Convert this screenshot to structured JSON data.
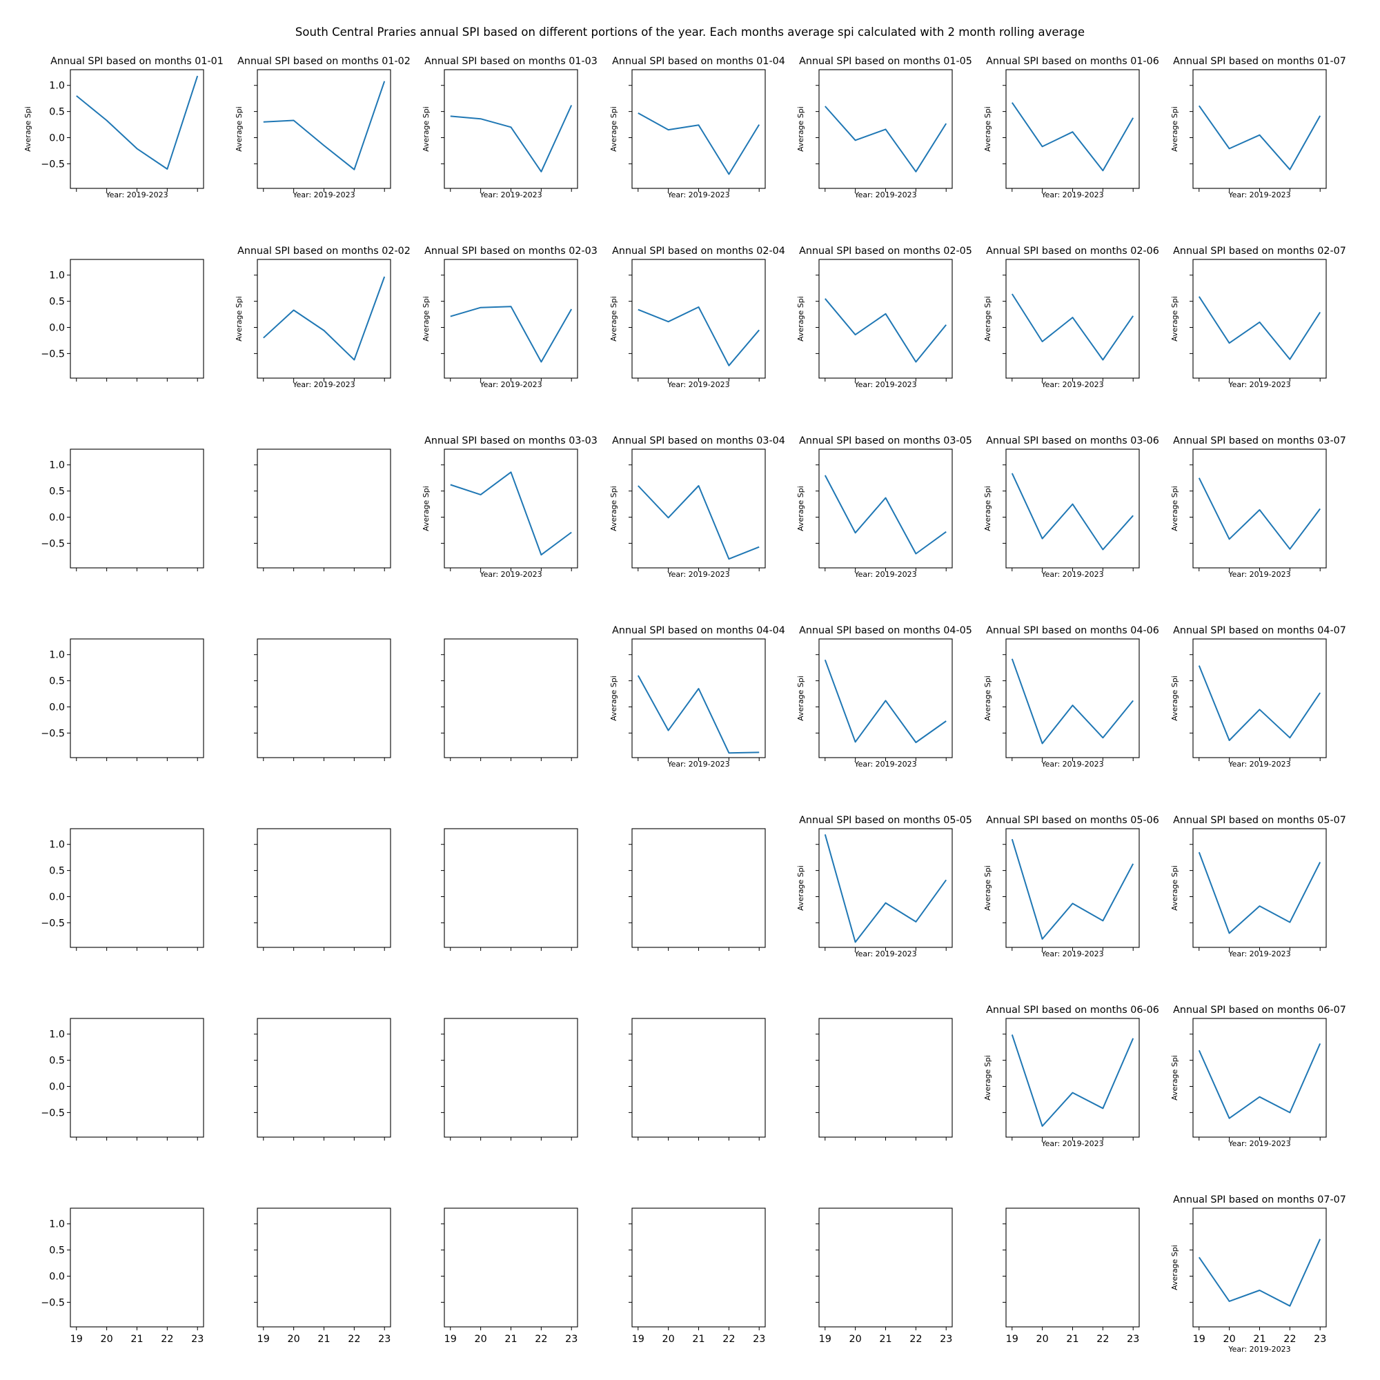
{
  "figure": {
    "title": "South Central Praries annual SPI based on different portions of the year. Each months average spi calculated with 2  month rolling average",
    "grid_rows": 7,
    "grid_cols": 7,
    "line_color": "#1f77b4"
  },
  "chart_data": {
    "type": "line",
    "x_tick_labels": [
      "19",
      "20",
      "21",
      "22",
      "23"
    ],
    "y_tick_labels": [
      "1.0",
      "0.5",
      "0.0",
      "−0.5"
    ],
    "y_ticks": [
      1.0,
      0.5,
      0.0,
      -0.5
    ],
    "xlim": [
      18.8,
      23.2
    ],
    "ylim": [
      -0.97,
      1.3
    ],
    "ylabel": "Average Spi",
    "xlabel": "Year: 2019-2023",
    "subplots": [
      {
        "row": 0,
        "col": 0,
        "title": "Annual SPI based on months 01-01",
        "x": [
          19,
          20,
          21,
          22,
          23
        ],
        "values": [
          0.8,
          0.33,
          -0.21,
          -0.6,
          1.18
        ]
      },
      {
        "row": 0,
        "col": 1,
        "title": "Annual SPI based on months 01-02",
        "x": [
          19,
          20,
          21,
          22,
          23
        ],
        "values": [
          0.3,
          0.33,
          -0.15,
          -0.61,
          1.08
        ]
      },
      {
        "row": 0,
        "col": 2,
        "title": "Annual SPI based on months 01-03",
        "x": [
          19,
          20,
          21,
          22,
          23
        ],
        "values": [
          0.41,
          0.36,
          0.2,
          -0.65,
          0.62
        ]
      },
      {
        "row": 0,
        "col": 3,
        "title": "Annual SPI based on months 01-04",
        "x": [
          19,
          20,
          21,
          22,
          23
        ],
        "values": [
          0.47,
          0.15,
          0.24,
          -0.7,
          0.25
        ]
      },
      {
        "row": 0,
        "col": 4,
        "title": "Annual SPI based on months 01-05",
        "x": [
          19,
          20,
          21,
          22,
          23
        ],
        "values": [
          0.6,
          -0.05,
          0.16,
          -0.65,
          0.27
        ]
      },
      {
        "row": 0,
        "col": 5,
        "title": "Annual SPI based on months 01-06",
        "x": [
          19,
          20,
          21,
          22,
          23
        ],
        "values": [
          0.67,
          -0.17,
          0.11,
          -0.63,
          0.38
        ]
      },
      {
        "row": 0,
        "col": 6,
        "title": "Annual SPI based on months 01-07",
        "x": [
          19,
          20,
          21,
          22,
          23
        ],
        "values": [
          0.61,
          -0.21,
          0.05,
          -0.61,
          0.42
        ]
      },
      {
        "row": 1,
        "col": 1,
        "title": "Annual SPI based on months 02-02",
        "x": [
          19,
          20,
          21,
          22,
          23
        ],
        "values": [
          -0.2,
          0.33,
          -0.06,
          -0.62,
          0.97
        ]
      },
      {
        "row": 1,
        "col": 2,
        "title": "Annual SPI based on months 02-03",
        "x": [
          19,
          20,
          21,
          22,
          23
        ],
        "values": [
          0.21,
          0.38,
          0.4,
          -0.66,
          0.35
        ]
      },
      {
        "row": 1,
        "col": 3,
        "title": "Annual SPI based on months 02-04",
        "x": [
          19,
          20,
          21,
          22,
          23
        ],
        "values": [
          0.34,
          0.11,
          0.39,
          -0.73,
          -0.05
        ]
      },
      {
        "row": 1,
        "col": 4,
        "title": "Annual SPI based on months 02-05",
        "x": [
          19,
          20,
          21,
          22,
          23
        ],
        "values": [
          0.55,
          -0.14,
          0.26,
          -0.66,
          0.05
        ]
      },
      {
        "row": 1,
        "col": 5,
        "title": "Annual SPI based on months 02-06",
        "x": [
          19,
          20,
          21,
          22,
          23
        ],
        "values": [
          0.64,
          -0.27,
          0.19,
          -0.62,
          0.22
        ]
      },
      {
        "row": 1,
        "col": 6,
        "title": "Annual SPI based on months 02-07",
        "x": [
          19,
          20,
          21,
          22,
          23
        ],
        "values": [
          0.59,
          -0.3,
          0.1,
          -0.61,
          0.29
        ]
      },
      {
        "row": 2,
        "col": 2,
        "title": "Annual SPI based on months 03-03",
        "x": [
          19,
          20,
          21,
          22,
          23
        ],
        "values": [
          0.62,
          0.43,
          0.86,
          -0.72,
          -0.29
        ]
      },
      {
        "row": 2,
        "col": 3,
        "title": "Annual SPI based on months 03-04",
        "x": [
          19,
          20,
          21,
          22,
          23
        ],
        "values": [
          0.6,
          -0.01,
          0.6,
          -0.8,
          -0.57
        ]
      },
      {
        "row": 2,
        "col": 4,
        "title": "Annual SPI based on months 03-05",
        "x": [
          19,
          20,
          21,
          22,
          23
        ],
        "values": [
          0.8,
          -0.3,
          0.37,
          -0.7,
          -0.28
        ]
      },
      {
        "row": 2,
        "col": 5,
        "title": "Annual SPI based on months 03-06",
        "x": [
          19,
          20,
          21,
          22,
          23
        ],
        "values": [
          0.84,
          -0.41,
          0.25,
          -0.62,
          0.03
        ]
      },
      {
        "row": 2,
        "col": 6,
        "title": "Annual SPI based on months 03-07",
        "x": [
          19,
          20,
          21,
          22,
          23
        ],
        "values": [
          0.75,
          -0.42,
          0.14,
          -0.61,
          0.16
        ]
      },
      {
        "row": 3,
        "col": 3,
        "title": "Annual SPI based on months 04-04",
        "x": [
          19,
          20,
          21,
          22,
          23
        ],
        "values": [
          0.6,
          -0.45,
          0.35,
          -0.88,
          -0.87
        ]
      },
      {
        "row": 3,
        "col": 4,
        "title": "Annual SPI based on months 04-05",
        "x": [
          19,
          20,
          21,
          22,
          23
        ],
        "values": [
          0.9,
          -0.67,
          0.12,
          -0.68,
          -0.27
        ]
      },
      {
        "row": 3,
        "col": 5,
        "title": "Annual SPI based on months 04-06",
        "x": [
          19,
          20,
          21,
          22,
          23
        ],
        "values": [
          0.92,
          -0.7,
          0.03,
          -0.59,
          0.12
        ]
      },
      {
        "row": 3,
        "col": 6,
        "title": "Annual SPI based on months 04-07",
        "x": [
          19,
          20,
          21,
          22,
          23
        ],
        "values": [
          0.79,
          -0.64,
          -0.05,
          -0.59,
          0.27
        ]
      },
      {
        "row": 4,
        "col": 4,
        "title": "Annual SPI based on months 05-05",
        "x": [
          19,
          20,
          21,
          22,
          23
        ],
        "values": [
          1.19,
          -0.87,
          -0.12,
          -0.48,
          0.32
        ]
      },
      {
        "row": 4,
        "col": 5,
        "title": "Annual SPI based on months 05-06",
        "x": [
          19,
          20,
          21,
          22,
          23
        ],
        "values": [
          1.1,
          -0.81,
          -0.13,
          -0.46,
          0.63
        ]
      },
      {
        "row": 4,
        "col": 6,
        "title": "Annual SPI based on months 05-07",
        "x": [
          19,
          20,
          21,
          22,
          23
        ],
        "values": [
          0.85,
          -0.7,
          -0.18,
          -0.49,
          0.66
        ]
      },
      {
        "row": 5,
        "col": 5,
        "title": "Annual SPI based on months 06-06",
        "x": [
          19,
          20,
          21,
          22,
          23
        ],
        "values": [
          0.99,
          -0.76,
          -0.12,
          -0.42,
          0.92
        ]
      },
      {
        "row": 5,
        "col": 6,
        "title": "Annual SPI based on months 06-07",
        "x": [
          19,
          20,
          21,
          22,
          23
        ],
        "values": [
          0.69,
          -0.61,
          -0.2,
          -0.5,
          0.82
        ]
      },
      {
        "row": 6,
        "col": 6,
        "title": "Annual SPI based on months 07-07",
        "x": [
          19,
          20,
          21,
          22,
          23
        ],
        "values": [
          0.36,
          -0.48,
          -0.27,
          -0.57,
          0.71
        ]
      }
    ]
  }
}
